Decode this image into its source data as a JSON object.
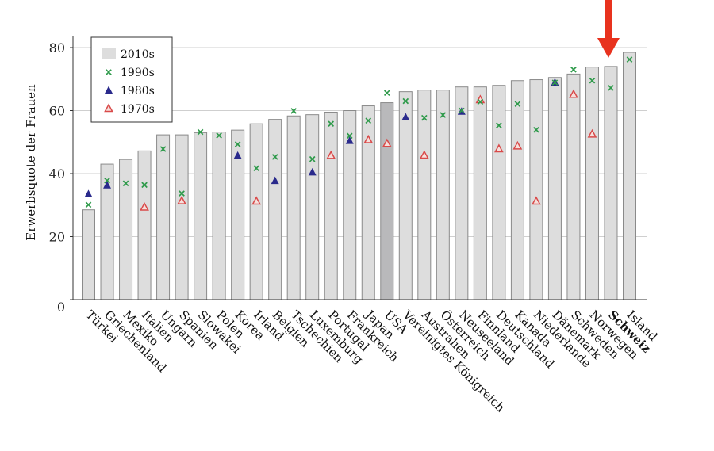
{
  "chart_data": {
    "type": "bar",
    "ylabel": "Erwerbsquote der Frauen",
    "xlabel": "",
    "ylim": [
      0,
      83
    ],
    "yticks": [
      0,
      20,
      40,
      60,
      80
    ],
    "grid": true,
    "legend_position": "top-left",
    "highlight_category": "Schweiz",
    "highlight_color": "#e8321e",
    "categories": [
      "Türkei",
      "Griechenland",
      "Mexiko",
      "Italien",
      "Ungarn",
      "Spanien",
      "Slowakei",
      "Polen",
      "Korea",
      "Irland",
      "Belgien",
      "Tschechien",
      "Luxemburg",
      "Portugal",
      "Frankreich",
      "Japan",
      "USA",
      "Vereinigtes Königreich",
      "Australien",
      "Österreich",
      "Neuseeland",
      "Finnland",
      "Deutschland",
      "Kanada",
      "Niederlande",
      "Dänemark",
      "Schweden",
      "Norwegen",
      "Schweiz",
      "Island"
    ],
    "series": [
      {
        "name": "2010s",
        "marker": "bar",
        "color": "#dddddd",
        "values": [
          28.5,
          43,
          44.5,
          47.2,
          52.3,
          52.3,
          53,
          53.2,
          53.8,
          55.8,
          57.2,
          58.3,
          58.7,
          59.5,
          60,
          61.5,
          62.5,
          66,
          66.5,
          66.5,
          67.5,
          67.5,
          68,
          69.5,
          69.8,
          70.5,
          71.6,
          73.8,
          74,
          78.5
        ]
      },
      {
        "name": "1990s",
        "marker": "x",
        "color": "#2e9a4a",
        "values": [
          30.1,
          37.8,
          36.9,
          36.4,
          47.8,
          33.7,
          53.2,
          52.1,
          49.3,
          41.7,
          45.3,
          59.9,
          44.6,
          55.8,
          52,
          56.8,
          65.6,
          63,
          57.7,
          58.6,
          60,
          62.8,
          55.3,
          62.1,
          53.9,
          68.9,
          73,
          69.5,
          67.2,
          76.2
        ]
      },
      {
        "name": "1980s",
        "marker": "triangle-filled",
        "color": "#2a2a8c",
        "values": [
          33.5,
          36.3,
          null,
          null,
          null,
          null,
          null,
          null,
          45.7,
          null,
          37.7,
          null,
          40.4,
          null,
          50.4,
          null,
          null,
          57.9,
          null,
          null,
          59.7,
          null,
          null,
          null,
          null,
          68.9,
          null,
          null,
          null,
          null
        ]
      },
      {
        "name": "1970s",
        "marker": "triangle-open",
        "color": "#d94a4a",
        "values": [
          null,
          null,
          null,
          29.3,
          null,
          31.3,
          null,
          null,
          null,
          31.2,
          null,
          null,
          null,
          45.7,
          null,
          50.7,
          49.5,
          null,
          45.8,
          null,
          null,
          63.4,
          47.8,
          48.7,
          31.2,
          null,
          65.1,
          52.5,
          null,
          null
        ]
      }
    ]
  }
}
